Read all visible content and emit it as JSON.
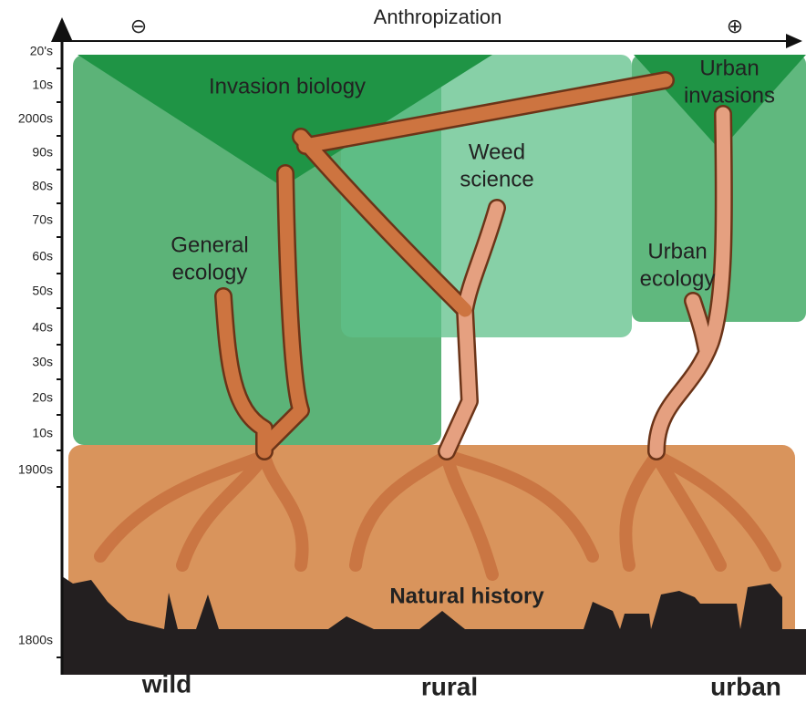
{
  "header": {
    "title": "Anthropization",
    "minus": "⊖",
    "plus": "⊕"
  },
  "timeline": [
    "20's",
    "10s",
    "2000s",
    "90s",
    "80s",
    "70s",
    "60s",
    "50s",
    "40s",
    "30s",
    "20s",
    "10s",
    "1900s",
    "1800s"
  ],
  "fields": [
    {
      "lines": [
        "Invasion biology"
      ]
    },
    {
      "lines": [
        "Weed",
        "science"
      ]
    },
    {
      "lines": [
        "Urban",
        "invasions"
      ]
    },
    {
      "lines": [
        "General",
        "ecology"
      ]
    },
    {
      "lines": [
        "Urban",
        "ecology"
      ]
    },
    {
      "lines": [
        "Natural history"
      ]
    }
  ],
  "gradient": [
    "wild",
    "rural",
    "urban"
  ]
}
